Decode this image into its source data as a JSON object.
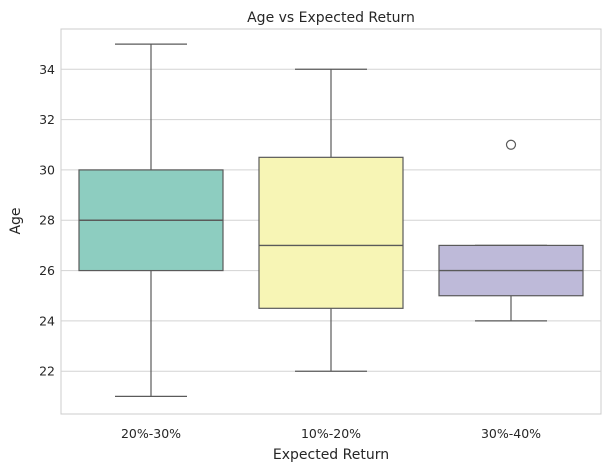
{
  "chart_data": {
    "type": "box",
    "title": "Age vs Expected Return",
    "xlabel": "Expected Return",
    "ylabel": "Age",
    "ylim": [
      20.3,
      35.6
    ],
    "yticks": [
      22,
      24,
      26,
      28,
      30,
      32,
      34
    ],
    "grid": "horizontal",
    "categories": [
      "20%-30%",
      "10%-20%",
      "30%-40%"
    ],
    "boxes": [
      {
        "category": "20%-30%",
        "min": 21,
        "q1": 26,
        "median": 28,
        "q3": 30,
        "max": 35,
        "outliers": [],
        "color": "#8dcdc0"
      },
      {
        "category": "10%-20%",
        "min": 22,
        "q1": 24.5,
        "median": 27,
        "q3": 30.5,
        "max": 34,
        "outliers": [],
        "color": "#f7f5b5"
      },
      {
        "category": "30%-40%",
        "min": 24,
        "q1": 25,
        "median": 26,
        "q3": 27,
        "max": 27,
        "outliers": [
          31
        ],
        "color": "#bebad9"
      }
    ]
  }
}
